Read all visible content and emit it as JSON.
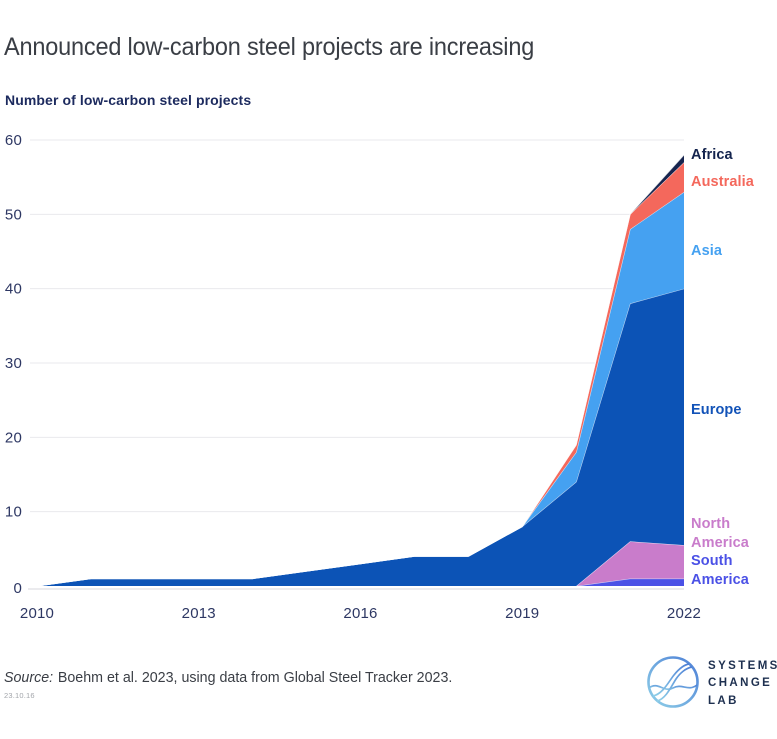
{
  "title": "Announced low-carbon steel projects are increasing",
  "subtitle": "Number of low-carbon steel projects",
  "chart_data": {
    "type": "area",
    "stacked": true,
    "title": "Announced low-carbon steel projects are increasing",
    "ylabel": "Number of low-carbon steel projects",
    "xlabel": "",
    "x": [
      2010,
      2011,
      2012,
      2013,
      2014,
      2015,
      2016,
      2017,
      2018,
      2019,
      2020,
      2021,
      2022
    ],
    "series": [
      {
        "name": "South America",
        "color": "#4B51E6",
        "values": [
          0,
          0,
          0,
          0,
          0,
          0,
          0,
          0,
          0,
          0,
          0,
          1,
          1
        ]
      },
      {
        "name": "North America",
        "color": "#C97CCB",
        "values": [
          0,
          0,
          0,
          0,
          0,
          0,
          0,
          0,
          0,
          0,
          0,
          5,
          4.5
        ]
      },
      {
        "name": "Europe",
        "color": "#0C53B6",
        "values": [
          0,
          1,
          1,
          1,
          1,
          2,
          3,
          4,
          4,
          8,
          14,
          32,
          34.5
        ]
      },
      {
        "name": "Asia",
        "color": "#45A1F1",
        "values": [
          0,
          0,
          0,
          0,
          0,
          0,
          0,
          0,
          0,
          0,
          4,
          10,
          13
        ]
      },
      {
        "name": "Australia",
        "color": "#F4685C",
        "values": [
          0,
          0,
          0,
          0,
          0,
          0,
          0,
          0,
          0,
          0,
          1,
          2,
          4
        ]
      },
      {
        "name": "Africa",
        "color": "#16244E",
        "values": [
          0,
          0,
          0,
          0,
          0,
          0,
          0,
          0,
          0,
          0,
          0,
          0,
          1
        ]
      }
    ],
    "totals_by_year": [
      0,
      1,
      1,
      1,
      1,
      2,
      3,
      4,
      4,
      8,
      19,
      50,
      58
    ],
    "xticks": [
      2010,
      2013,
      2016,
      2019,
      2022
    ],
    "yticks": [
      0,
      10,
      20,
      30,
      40,
      50,
      60
    ],
    "ylim": [
      0,
      60
    ],
    "grid": true,
    "legend_position": "right",
    "legend": [
      {
        "label": "Africa",
        "color": "#14244E",
        "top": 146
      },
      {
        "label": "Australia",
        "color": "#F4685C",
        "top": 173
      },
      {
        "label": "Asia",
        "color": "#45A1F1",
        "top": 242
      },
      {
        "label": "Europe",
        "color": "#1253B8",
        "top": 401
      },
      {
        "label": "North America",
        "color": "#C97CCB",
        "top": 515
      },
      {
        "label": "South America",
        "color": "#4B51E6",
        "top": 552
      }
    ],
    "colors": {
      "gridline": "#E9E9ED",
      "axis_line": "#DFDFE3",
      "tick_label": "#2D3763"
    }
  },
  "footer": {
    "source_label": "Source:",
    "source_text": "Boehm et al. 2023, using data from Global Steel Tracker 2023.",
    "date_code": "23.10.16"
  },
  "logo": {
    "lines": [
      "SYSTEMS",
      "CHANGE",
      "LAB"
    ]
  }
}
